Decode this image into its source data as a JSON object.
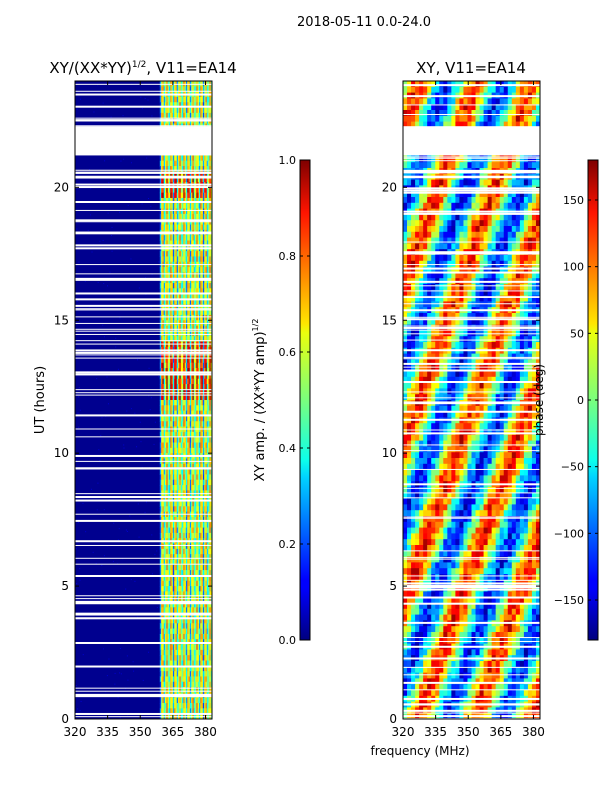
{
  "chart_data": {
    "type": "heatmap",
    "suptitle": "2018-05-11 0.0-24.0",
    "panels": [
      {
        "id": "amp",
        "title": "XY/(XX*YY)",
        "title_exponent": "1/2",
        "title_suffix": ", V11=EA14",
        "x_ticks": [
          320,
          335,
          350,
          365,
          380
        ],
        "x_tick_labels": [
          "320",
          "335",
          "350",
          "365",
          "380"
        ],
        "xlim": [
          320,
          383
        ],
        "y_ticks": [
          0,
          5,
          10,
          15,
          20
        ],
        "y_tick_labels": [
          "0",
          "5",
          "10",
          "15",
          "20"
        ],
        "ylim": [
          0,
          24
        ],
        "ylabel": "UT (hours)",
        "colormap": "jet",
        "gap_hours": [
          [
            21.2,
            22.3
          ]
        ],
        "bright_channels_mhz": [
          [
            359,
            385
          ]
        ]
      },
      {
        "id": "phase",
        "title": "XY, V11=EA14",
        "x_ticks": [
          320,
          335,
          350,
          365,
          380
        ],
        "x_tick_labels": [
          "320",
          "335",
          "350",
          "365",
          "380"
        ],
        "xlim": [
          320,
          383
        ],
        "y_ticks": [
          0,
          5,
          10,
          15,
          20
        ],
        "y_tick_labels": [
          "0",
          "5",
          "10",
          "15",
          "20"
        ],
        "ylim": [
          0,
          24
        ],
        "xlabel": "frequency (MHz)",
        "colormap": "jet",
        "gap_hours": [
          [
            21.2,
            22.3
          ]
        ]
      }
    ],
    "colorbars": [
      {
        "id": "amp_cbar",
        "range": [
          0.0,
          1.0
        ],
        "ticks": [
          0.0,
          0.2,
          0.4,
          0.6,
          0.8,
          1.0
        ],
        "tick_labels": [
          "0.0",
          "0.2",
          "0.4",
          "0.6",
          "0.8",
          "1.0"
        ],
        "label": "XY amp. / (XX*YY amp)",
        "label_exponent": "1/2"
      },
      {
        "id": "phase_cbar",
        "range": [
          -180,
          180
        ],
        "ticks": [
          -150,
          -100,
          -50,
          0,
          50,
          100,
          150
        ],
        "tick_labels": [
          "−150",
          "−100",
          "−50",
          "0",
          "50",
          "100",
          "150"
        ],
        "label": "phase (deg)"
      }
    ]
  }
}
